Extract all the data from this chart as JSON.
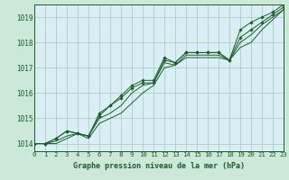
{
  "title": "Graphe pression niveau de la mer (hPa)",
  "background_color": "#cce8d8",
  "plot_bg_color": "#d9eff5",
  "grid_color": "#a8c8b8",
  "line_color": "#1a5c2a",
  "xlim": [
    0,
    23
  ],
  "ylim": [
    1013.7,
    1019.5
  ],
  "yticks": [
    1014,
    1015,
    1016,
    1017,
    1018,
    1019
  ],
  "xticks": [
    0,
    1,
    2,
    3,
    4,
    5,
    6,
    7,
    8,
    9,
    10,
    11,
    12,
    13,
    14,
    15,
    16,
    17,
    18,
    19,
    20,
    21,
    22,
    23
  ],
  "series": [
    [
      1014.0,
      1014.0,
      1014.2,
      1014.5,
      1014.4,
      1014.3,
      1015.2,
      1015.5,
      1015.9,
      1016.3,
      1016.5,
      1016.5,
      1017.4,
      1017.2,
      1017.6,
      1017.6,
      1017.6,
      1017.6,
      1017.3,
      1018.5,
      1018.8,
      1019.0,
      1019.2,
      1019.5
    ],
    [
      1014.0,
      1014.0,
      1014.2,
      1014.5,
      1014.4,
      1014.3,
      1015.1,
      1015.5,
      1015.8,
      1016.2,
      1016.4,
      1016.4,
      1017.3,
      1017.2,
      1017.6,
      1017.6,
      1017.6,
      1017.6,
      1017.3,
      1018.2,
      1018.5,
      1018.8,
      1019.1,
      1019.4
    ],
    [
      1014.0,
      1014.0,
      1014.1,
      1014.3,
      1014.4,
      1014.3,
      1015.0,
      1015.2,
      1015.5,
      1016.0,
      1016.3,
      1016.4,
      1017.2,
      1017.1,
      1017.5,
      1017.5,
      1017.5,
      1017.5,
      1017.3,
      1018.0,
      1018.3,
      1018.7,
      1019.0,
      1019.3
    ],
    [
      1014.0,
      1014.0,
      1014.0,
      1014.2,
      1014.4,
      1014.2,
      1014.8,
      1015.0,
      1015.2,
      1015.6,
      1016.0,
      1016.3,
      1017.0,
      1017.1,
      1017.4,
      1017.4,
      1017.4,
      1017.4,
      1017.3,
      1017.8,
      1018.0,
      1018.5,
      1018.9,
      1019.3
    ]
  ],
  "marker_series": [
    0,
    1
  ],
  "title_fontsize": 6.0,
  "tick_fontsize": 5.5
}
